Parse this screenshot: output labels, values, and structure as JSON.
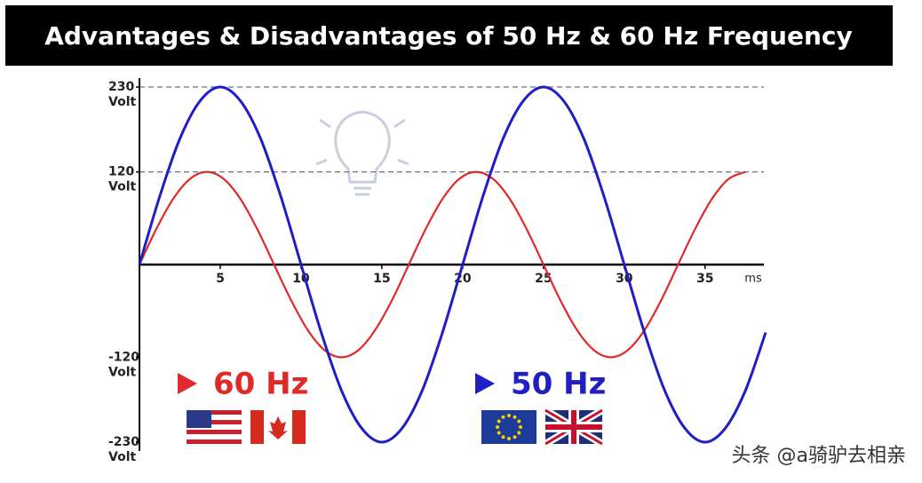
{
  "chart_data": {
    "type": "line",
    "title": "Advantages & Disadvantages of 50 Hz & 60 Hz Frequency",
    "x_unit": "ms",
    "y_unit": "Volt",
    "xlim": [
      0,
      38.75
    ],
    "xticks": [
      5,
      10,
      15,
      20,
      25,
      30,
      35
    ],
    "ylim": [
      -230,
      230
    ],
    "yticks": [
      230,
      120,
      -120,
      -230
    ],
    "grid_lines": [
      230,
      120
    ],
    "series": [
      {
        "name": "60 Hz",
        "color": "#e02a2a",
        "x": [
          0,
          1.04,
          2.08,
          3.13,
          4.17,
          5.21,
          6.25,
          7.29,
          8.33,
          9.38,
          10.42,
          11.46,
          12.5,
          13.54,
          14.58,
          15.63,
          16.67,
          17.71,
          18.75,
          19.79,
          20.83,
          21.88,
          22.92,
          23.96,
          25,
          26.04,
          27.08,
          28.13,
          29.17,
          30.21,
          31.25,
          32.29,
          33.33,
          34.38,
          35.42,
          36.46,
          37.5
        ],
        "values": [
          0,
          46,
          85,
          111,
          120,
          111,
          85,
          46,
          0,
          -46,
          -85,
          -111,
          -120,
          -111,
          -85,
          -46,
          0,
          46,
          85,
          111,
          120,
          111,
          85,
          46,
          0,
          -46,
          -85,
          -111,
          -120,
          -111,
          -85,
          -46,
          0,
          46,
          85,
          111,
          120
        ]
      },
      {
        "name": "50 Hz",
        "color": "#1f1fc4",
        "x": [
          0,
          1.25,
          2.5,
          3.75,
          5,
          6.25,
          7.5,
          8.75,
          10,
          11.25,
          12.5,
          13.75,
          15,
          16.25,
          17.5,
          18.75,
          20,
          21.25,
          22.5,
          23.75,
          25,
          26.25,
          27.5,
          28.75,
          30,
          31.25,
          32.5,
          33.75,
          35,
          36.25,
          37.5,
          38.75
        ],
        "values": [
          0,
          88,
          163,
          212,
          230,
          212,
          163,
          88,
          0,
          -88,
          -163,
          -212,
          -230,
          -212,
          -163,
          -88,
          0,
          88,
          163,
          212,
          230,
          212,
          163,
          88,
          0,
          -88,
          -163,
          -212,
          -230,
          -212,
          -163,
          -88
        ]
      }
    ]
  },
  "watermark": "头条 @a骑驴去相亲"
}
